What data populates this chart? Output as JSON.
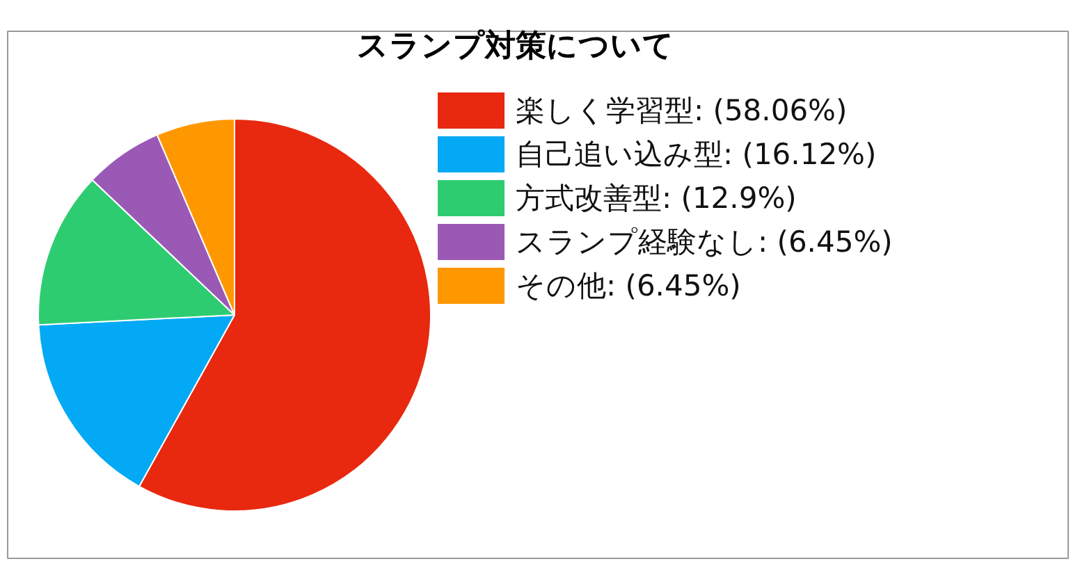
{
  "chart_data": {
    "type": "pie",
    "title": "スランプ対策について",
    "categories": [
      "楽しく学習型",
      "自己追い込み型",
      "方式改善型",
      "スランプ経験なし",
      "その他"
    ],
    "values": [
      58.06,
      16.12,
      12.9,
      6.45,
      6.45
    ],
    "colors": [
      "#e8290f",
      "#03a9f4",
      "#2ecc71",
      "#9b59b6",
      "#ff9800"
    ],
    "value_labels": [
      "(58.06%)",
      "(16.12%)",
      "(12.9%)",
      "(6.45%)",
      "(6.45%)"
    ],
    "legend": "top right"
  }
}
